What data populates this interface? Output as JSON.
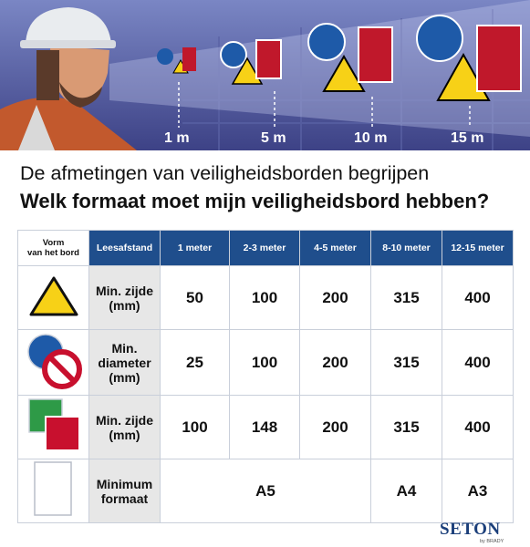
{
  "hero": {
    "distances": [
      "1 m",
      "5 m",
      "10 m",
      "15 m"
    ]
  },
  "title": {
    "line1": "De afmetingen van veiligheidsborden begrijpen",
    "line2": "Welk formaat moet mijn veiligheidsbord hebben?"
  },
  "table": {
    "corner": "Vorm\nvan het bord",
    "headers": [
      "Leesafstand",
      "1 meter",
      "2-3 meter",
      "4-5 meter",
      "8-10 meter",
      "12-15 meter"
    ],
    "rows": [
      {
        "shape": "warning-triangle-icon",
        "label": "Min. zijde\n(mm)",
        "values": [
          "50",
          "100",
          "200",
          "315",
          "400"
        ]
      },
      {
        "shape": "round-signs-icon",
        "label": "Min.\ndiameter\n(mm)",
        "values": [
          "25",
          "100",
          "200",
          "315",
          "400"
        ]
      },
      {
        "shape": "square-signs-icon",
        "label": "Min. zijde\n(mm)",
        "values": [
          "100",
          "148",
          "200",
          "315",
          "400"
        ]
      },
      {
        "shape": "rectangle-sign-icon",
        "label": "Minimum\nformaat",
        "values": [
          "A5",
          "A4",
          "A3"
        ]
      }
    ]
  },
  "logo": {
    "brand": "SETON",
    "by": "by BRADY"
  },
  "colors": {
    "header_blue": "#1f4e8c",
    "label_gray": "#e7e7e7",
    "warning_yellow": "#f7d117",
    "mandatory_blue": "#1e5aa8",
    "prohibition_red": "#c8102e",
    "safe_green": "#2e9a47",
    "fire_red": "#c0182b"
  }
}
